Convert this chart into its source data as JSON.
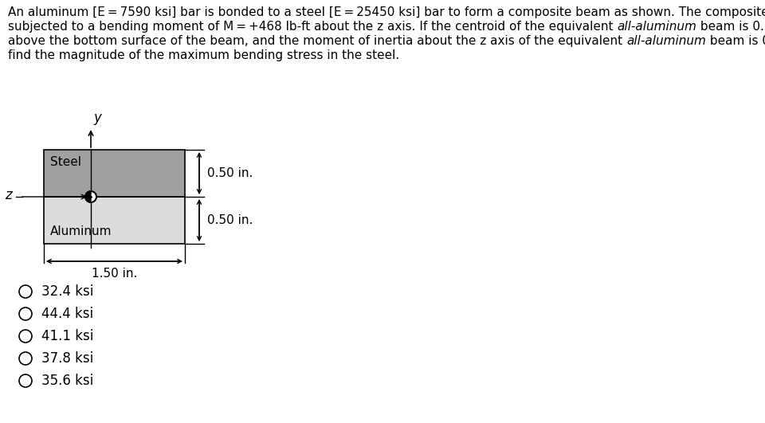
{
  "steel_color": "#a0a0a0",
  "aluminum_color": "#dcdcdc",
  "background_color": "#ffffff",
  "choices": [
    "32.4 ksi",
    "44.4 ksi",
    "41.1 ksi",
    "37.8 ksi",
    "35.6 ksi"
  ],
  "dim_050_top": "0.50 in.",
  "dim_050_bot": "0.50 in.",
  "dim_150": "1.50 in.",
  "label_steel": "Steel",
  "label_aluminum": "Aluminum",
  "label_y": "y",
  "label_z": "z",
  "text_fontsize": 11.0,
  "choice_fontsize": 12.0
}
